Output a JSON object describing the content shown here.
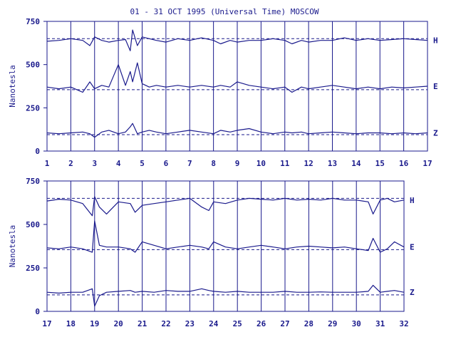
{
  "title": "01 - 31 OCT 1995 (Universal Time) MOSCOW",
  "colors": {
    "ink": "#1a1a8c",
    "background": "#ffffff"
  },
  "chart_data": [
    {
      "type": "line",
      "title": "",
      "xlabel": "",
      "ylabel": "Nanotesla",
      "xlim": [
        1,
        17
      ],
      "ylim": [
        0,
        750
      ],
      "x_ticks": [
        "1",
        "2",
        "3",
        "4",
        "5",
        "6",
        "7",
        "8",
        "9",
        "10",
        "11",
        "12",
        "13",
        "14",
        "15",
        "16",
        "17"
      ],
      "y_ticks": [
        "0",
        "250",
        "500",
        "750"
      ],
      "grid": "vertical lines at each day",
      "series": [
        {
          "name": "H",
          "baseline": 650,
          "x": [
            1,
            1.5,
            2,
            2.5,
            2.8,
            3,
            3.3,
            3.6,
            4,
            4.3,
            4.5,
            4.6,
            4.8,
            5,
            5.3,
            5.6,
            6,
            6.5,
            7,
            7.5,
            8,
            8.3,
            8.7,
            9,
            9.5,
            10,
            10.5,
            11,
            11.3,
            11.7,
            12,
            12.5,
            13,
            13.5,
            14,
            14.5,
            15,
            15.5,
            16,
            16.5,
            17
          ],
          "y": [
            635,
            640,
            650,
            640,
            610,
            660,
            640,
            630,
            640,
            645,
            580,
            700,
            610,
            660,
            650,
            640,
            630,
            650,
            640,
            655,
            640,
            620,
            640,
            630,
            640,
            640,
            650,
            640,
            620,
            640,
            630,
            640,
            640,
            655,
            640,
            650,
            640,
            645,
            650,
            645,
            640
          ]
        },
        {
          "name": "E",
          "baseline": 355,
          "x": [
            1,
            1.5,
            2,
            2.5,
            2.8,
            3,
            3.3,
            3.6,
            4,
            4.3,
            4.5,
            4.6,
            4.8,
            5,
            5.3,
            5.6,
            6,
            6.5,
            7,
            7.5,
            8,
            8.3,
            8.7,
            9,
            9.5,
            10,
            10.5,
            11,
            11.3,
            11.7,
            12,
            12.5,
            13,
            13.5,
            14,
            14.5,
            15,
            15.5,
            16,
            16.5,
            17
          ],
          "y": [
            370,
            360,
            370,
            340,
            400,
            360,
            380,
            370,
            500,
            380,
            460,
            400,
            510,
            390,
            370,
            380,
            370,
            380,
            370,
            380,
            370,
            380,
            370,
            400,
            380,
            370,
            360,
            370,
            340,
            370,
            360,
            370,
            380,
            370,
            360,
            370,
            360,
            370,
            365,
            370,
            375
          ]
        },
        {
          "name": "Z",
          "baseline": 95,
          "x": [
            1,
            1.5,
            2,
            2.5,
            2.8,
            3,
            3.3,
            3.6,
            4,
            4.3,
            4.5,
            4.6,
            4.8,
            5,
            5.3,
            5.6,
            6,
            6.5,
            7,
            7.5,
            8,
            8.3,
            8.7,
            9,
            9.5,
            10,
            10.5,
            11,
            11.3,
            11.7,
            12,
            12.5,
            13,
            13.5,
            14,
            14.5,
            15,
            15.5,
            16,
            16.5,
            17
          ],
          "y": [
            105,
            100,
            105,
            110,
            100,
            80,
            110,
            120,
            100,
            110,
            140,
            160,
            100,
            110,
            120,
            110,
            100,
            110,
            120,
            110,
            100,
            120,
            110,
            120,
            130,
            110,
            100,
            110,
            105,
            110,
            100,
            105,
            110,
            105,
            100,
            105,
            105,
            100,
            105,
            100,
            105
          ]
        }
      ]
    },
    {
      "type": "line",
      "title": "",
      "xlabel": "",
      "ylabel": "Nanotesla",
      "xlim": [
        17,
        32
      ],
      "ylim": [
        0,
        750
      ],
      "x_ticks": [
        "17",
        "18",
        "19",
        "20",
        "21",
        "22",
        "23",
        "24",
        "25",
        "26",
        "27",
        "28",
        "29",
        "30",
        "31",
        "32"
      ],
      "y_ticks": [
        "0",
        "250",
        "500",
        "750"
      ],
      "grid": "vertical lines at each day",
      "series": [
        {
          "name": "H",
          "baseline": 650,
          "x": [
            17,
            17.5,
            18,
            18.5,
            18.9,
            19,
            19.2,
            19.5,
            20,
            20.5,
            20.7,
            21,
            21.5,
            22,
            22.5,
            23,
            23.5,
            23.8,
            24,
            24.5,
            25,
            25.5,
            26,
            26.5,
            27,
            27.5,
            28,
            28.5,
            29,
            29.5,
            30,
            30.5,
            30.7,
            31,
            31.3,
            31.6,
            32
          ],
          "y": [
            635,
            645,
            640,
            620,
            550,
            660,
            600,
            560,
            630,
            620,
            570,
            610,
            620,
            630,
            640,
            650,
            600,
            580,
            630,
            620,
            640,
            650,
            645,
            640,
            650,
            640,
            645,
            640,
            650,
            640,
            640,
            630,
            560,
            640,
            650,
            630,
            640
          ]
        },
        {
          "name": "E",
          "baseline": 355,
          "x": [
            17,
            17.5,
            18,
            18.5,
            18.9,
            19,
            19.2,
            19.5,
            20,
            20.5,
            20.7,
            21,
            21.5,
            22,
            22.5,
            23,
            23.5,
            23.8,
            24,
            24.5,
            25,
            25.5,
            26,
            26.5,
            27,
            27.5,
            28,
            28.5,
            29,
            29.5,
            30,
            30.5,
            30.7,
            31,
            31.3,
            31.6,
            32
          ],
          "y": [
            365,
            360,
            370,
            360,
            340,
            520,
            380,
            370,
            370,
            360,
            340,
            400,
            380,
            360,
            370,
            380,
            370,
            360,
            400,
            370,
            360,
            370,
            380,
            370,
            360,
            370,
            375,
            370,
            365,
            370,
            360,
            350,
            420,
            340,
            360,
            400,
            370
          ]
        },
        {
          "name": "Z",
          "baseline": 95,
          "x": [
            17,
            17.5,
            18,
            18.5,
            18.9,
            19,
            19.2,
            19.5,
            20,
            20.5,
            20.7,
            21,
            21.5,
            22,
            22.5,
            23,
            23.5,
            23.8,
            24,
            24.5,
            25,
            25.5,
            26,
            26.5,
            27,
            27.5,
            28,
            28.5,
            29,
            29.5,
            30,
            30.5,
            30.7,
            31,
            31.3,
            31.6,
            32
          ],
          "y": [
            110,
            105,
            110,
            110,
            130,
            30,
            90,
            110,
            115,
            120,
            110,
            115,
            110,
            120,
            115,
            115,
            130,
            120,
            115,
            110,
            115,
            110,
            110,
            110,
            115,
            110,
            110,
            112,
            110,
            110,
            110,
            115,
            150,
            110,
            115,
            120,
            110
          ]
        }
      ]
    }
  ]
}
